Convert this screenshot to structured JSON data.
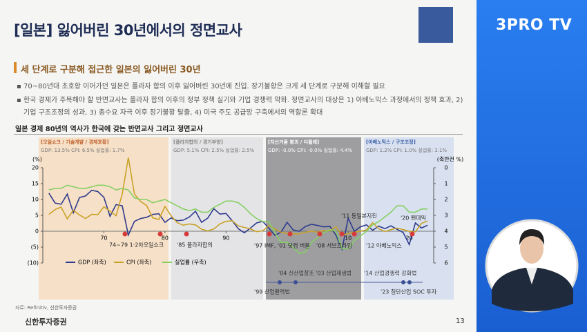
{
  "logo": "3PRO TV",
  "header": {
    "title": "[일본] 잃어버린 30년에서의 정면교사",
    "subtitle": "세 단계로 구분해 접근한 일본의 잃어버린 30년"
  },
  "bullets": [
    "70~80년대 초호황 이어가던 일본은 플라자 합의 이후 잃어버린 30년에 진입. 장기불황은 크게 세 단계로 구분해 이해할 필요",
    "한국 경제가 주목해야 할 반면교사는 플라자 합의 이후의 정부 정책 실기와 기업 경쟁력 약화. 정면교사의 대상은 1) 아베노믹스 과정에서의 정책 효과, 2) 기업 구조조정의 성과, 3) 총수요 자극 이후 장기불황 탈출, 4) 미국 주도 공급망 구축에서의 역할론 확대"
  ],
  "source": "자료: Refinitiv, 신한투자증권",
  "footer": "신한투자증권",
  "page": "13",
  "chart_data": {
    "type": "line",
    "title": "일본 경제 80년의 역사가 한국에 갖는 반면교사 그리고 정면교사",
    "ylabel": "(%)",
    "y2label": "(축반전 %)",
    "periods": [
      {
        "label": "[오일쇼크 / 기술개발 / 경제호황]",
        "stats": "GDP: 13.5% CPI: 6.5% 실업률: 1.7%"
      },
      {
        "label": "[플라자합의 / 경기부양]",
        "stats": "GDP: 5.1% CPI: 2.5% 실업률: 2.5%"
      },
      {
        "label": "[자산거품 붕괴 / 디플레]",
        "stats": "GDP: -0.0% CPI: -0.0% 실업률: 4.4%"
      },
      {
        "label": "[아베노믹스 / 구조조정]",
        "stats": "GDP: 1.2% CPI: 1.0% 실업률: 3.1%"
      }
    ],
    "events": [
      "74~79 1·2차오일쇼크",
      "'85 플라자합의",
      "'97 IMF, '01 닷컴 버블",
      "'08 서브프라임",
      "'11 동일본지진",
      "'12 아베노믹스",
      "'20 팬데믹"
    ],
    "policies": [
      "'04 신산업창조 '03 산업재생법",
      "'99 산업활력법",
      "'14 산업경쟁력 강화법",
      "'23 첨단산업 SOC 투자"
    ],
    "x": [
      1961,
      1962,
      1963,
      1964,
      1965,
      1966,
      1967,
      1968,
      1969,
      1970,
      1971,
      1972,
      1973,
      1974,
      1975,
      1976,
      1977,
      1978,
      1979,
      1980,
      1981,
      1982,
      1983,
      1984,
      1985,
      1986,
      1987,
      1988,
      1989,
      1990,
      1991,
      1992,
      1993,
      1994,
      1995,
      1996,
      1997,
      1998,
      1999,
      2000,
      2001,
      2002,
      2003,
      2004,
      2005,
      2006,
      2007,
      2008,
      2009,
      2010,
      2011,
      2012,
      2013,
      2014,
      2015,
      2016,
      2017,
      2018,
      2019,
      2020,
      2021,
      2022,
      2023
    ],
    "xlim": [
      1960,
      2024
    ],
    "xticks": [
      {
        "value": 1970,
        "label": "70"
      },
      {
        "value": 1980,
        "label": "80"
      },
      {
        "value": 1990,
        "label": "90"
      },
      {
        "value": 2010,
        "label": "10"
      },
      {
        "value": 2020,
        "label": "20"
      }
    ],
    "ylim": [
      -10,
      20
    ],
    "yticks": [
      20,
      15,
      10,
      5,
      0,
      {
        "value": -5,
        "label": "(5)"
      },
      {
        "value": -10,
        "label": "(10)"
      }
    ],
    "y2lim": [
      6,
      0
    ],
    "y2ticks": [
      0,
      1,
      2,
      3,
      4,
      5,
      6
    ],
    "series": [
      {
        "name": "GDP (좌축)",
        "color": "#2e3a8c",
        "values": [
          12,
          8.9,
          8.5,
          11.7,
          5.8,
          10.6,
          11.1,
          12.9,
          12.5,
          10.7,
          4.7,
          8.4,
          8.0,
          -1.2,
          3.1,
          4.0,
          4.4,
          5.3,
          5.5,
          2.8,
          4.2,
          3.3,
          3.5,
          4.5,
          6.3,
          2.8,
          4.1,
          7.1,
          5.4,
          5.6,
          3.3,
          0.8,
          -0.5,
          1.0,
          2.6,
          3.1,
          1.0,
          -1.3,
          -0.3,
          2.8,
          0.4,
          0.0,
          1.5,
          2.2,
          1.8,
          1.4,
          1.5,
          -1.2,
          -5.7,
          4.1,
          0.0,
          1.4,
          2.0,
          0.3,
          1.6,
          0.8,
          1.7,
          0.6,
          -0.4,
          -4.2,
          2.6,
          1.0,
          1.9
        ]
      },
      {
        "name": "CPI (좌축)",
        "color": "#c9a227",
        "values": [
          5.3,
          6.8,
          7.6,
          3.9,
          6.6,
          5.1,
          4.0,
          5.3,
          5.2,
          7.7,
          6.3,
          4.9,
          11.7,
          23.2,
          11.7,
          9.4,
          8.1,
          4.2,
          3.7,
          7.8,
          4.9,
          2.7,
          1.9,
          2.3,
          2.0,
          0.6,
          0.1,
          0.7,
          2.3,
          3.1,
          3.3,
          1.7,
          1.2,
          0.7,
          -0.1,
          0.1,
          1.8,
          0.7,
          -0.3,
          -0.7,
          -0.8,
          -0.9,
          -0.3,
          0.0,
          -0.3,
          0.2,
          0.1,
          1.4,
          -1.4,
          -0.7,
          -0.3,
          0.0,
          0.4,
          2.7,
          0.8,
          -0.1,
          0.5,
          1.0,
          0.5,
          0.0,
          -0.2,
          2.5,
          3.2
        ]
      },
      {
        "name": "실업률 (우축)",
        "color": "#86cf63",
        "axis": "y2",
        "values": [
          1.4,
          1.3,
          1.3,
          1.1,
          1.2,
          1.3,
          1.3,
          1.2,
          1.1,
          1.1,
          1.2,
          1.4,
          1.3,
          1.4,
          1.9,
          2.0,
          2.0,
          2.2,
          2.1,
          2.0,
          2.2,
          2.4,
          2.6,
          2.7,
          2.6,
          2.8,
          2.8,
          2.5,
          2.3,
          2.1,
          2.1,
          2.2,
          2.5,
          2.9,
          3.2,
          3.4,
          3.4,
          4.1,
          4.7,
          4.7,
          5.0,
          5.4,
          5.3,
          4.7,
          4.4,
          4.1,
          3.9,
          4.0,
          5.1,
          5.1,
          4.6,
          4.3,
          4.0,
          3.6,
          3.4,
          3.1,
          2.8,
          2.4,
          2.4,
          2.8,
          2.8,
          2.6,
          2.6
        ]
      }
    ]
  }
}
